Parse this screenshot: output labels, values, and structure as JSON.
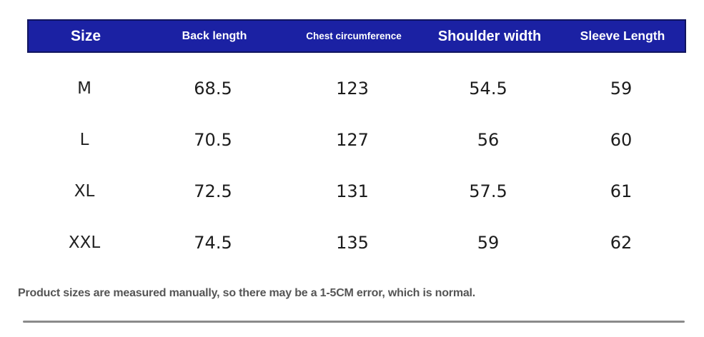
{
  "header": {
    "columns": [
      "Size",
      "Back length",
      "Chest circumference",
      "Shoulder width",
      "Sleeve Length"
    ]
  },
  "rows": [
    {
      "size": "M",
      "back_length": "68.5",
      "chest": "123",
      "shoulder": "54.5",
      "sleeve": "59"
    },
    {
      "size": "L",
      "back_length": "70.5",
      "chest": "127",
      "shoulder": "56",
      "sleeve": "60"
    },
    {
      "size": "XL",
      "back_length": "72.5",
      "chest": "131",
      "shoulder": "57.5",
      "sleeve": "61"
    },
    {
      "size": "XXL",
      "back_length": "74.5",
      "chest": "135",
      "shoulder": "59",
      "sleeve": "62"
    }
  ],
  "note": "Product sizes are measured manually, so there may be a 1-5CM error, which is normal.",
  "colors": {
    "header_bg": "#1b21a3",
    "header_border": "#11155e",
    "header_text": "#ffffff",
    "body_text": "#1c1c1c",
    "note_text": "#555555",
    "divider": "#8a8a8a"
  },
  "chart_data": {
    "type": "table",
    "title": "",
    "columns": [
      "Size",
      "Back length",
      "Chest circumference",
      "Shoulder width",
      "Sleeve Length"
    ],
    "rows": [
      [
        "M",
        68.5,
        123,
        54.5,
        59
      ],
      [
        "L",
        70.5,
        127,
        56,
        60
      ],
      [
        "XL",
        72.5,
        131,
        57.5,
        61
      ],
      [
        "XXL",
        74.5,
        135,
        59,
        62
      ]
    ],
    "notes": [
      "Product sizes are measured manually, so there may be a 1-5CM error, which is normal."
    ]
  }
}
